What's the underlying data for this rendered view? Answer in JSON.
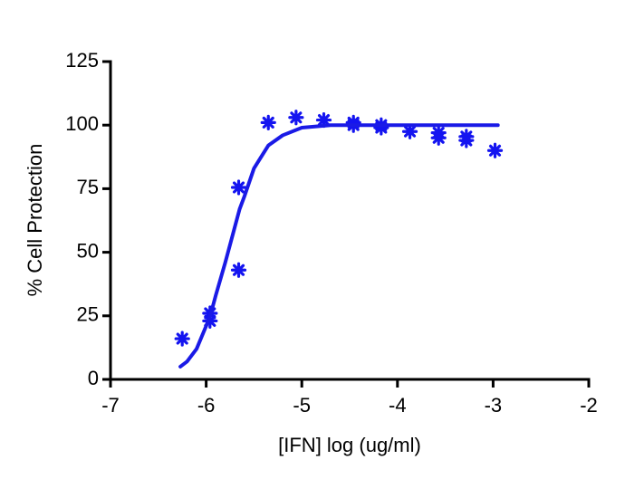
{
  "chart_data": {
    "type": "scatter",
    "x_label": "[IFN] log (ug/ml)",
    "y_label": "% Cell Protection",
    "xlim": [
      -7,
      -2
    ],
    "xticks": [
      -7,
      -6,
      -5,
      -4,
      -3,
      -2
    ],
    "ylim": [
      0,
      125
    ],
    "yticks": [
      0,
      25,
      50,
      75,
      100,
      125
    ],
    "series": [
      {
        "color": "#1414f0",
        "x": [
          -6.25,
          -5.96,
          -5.96,
          -5.66,
          -5.66,
          -5.35,
          -5.06,
          -4.77,
          -4.46,
          -4.46,
          -4.17,
          -4.17,
          -3.87,
          -3.57,
          -3.57,
          -3.28,
          -3.28,
          -2.98
        ],
        "values": [
          16,
          26,
          23,
          75.5,
          43,
          101,
          103,
          102,
          101,
          100,
          100,
          99,
          97.5,
          97,
          95,
          95.5,
          94,
          90
        ]
      },
      {
        "type": "line",
        "color": "#1a1ae6",
        "x": [
          -6.27,
          -6.2,
          -6.1,
          -6.0,
          -5.95,
          -5.9,
          -5.8,
          -5.7,
          -5.65,
          -5.6,
          -5.5,
          -5.4,
          -5.35,
          -5.2,
          -5.0,
          -4.7,
          -4.4,
          -4.0,
          -3.5,
          -2.95
        ],
        "values": [
          5,
          7,
          12,
          21,
          26,
          33,
          46,
          60,
          67,
          72,
          83,
          89,
          92,
          96,
          99,
          100,
          100,
          100,
          100,
          100
        ]
      }
    ]
  }
}
